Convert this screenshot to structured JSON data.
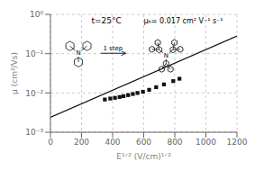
{
  "chart_data": {
    "type": "scatter",
    "x_label": "E¹ᐟ² (V/cm)¹ᐟ²",
    "y_label": "μ (cm²/Vs)",
    "log": "y",
    "grid": true,
    "xlim": [
      0,
      1200
    ],
    "xticks": [
      0,
      200,
      400,
      600,
      800,
      1000,
      1200
    ],
    "ylim": [
      0.001,
      1
    ],
    "yticks": [
      {
        "value": 0.001,
        "label": "10⁻³"
      },
      {
        "value": 0.01,
        "label": "10⁻²"
      },
      {
        "value": 0.1,
        "label": "10⁻¹"
      },
      {
        "value": 1,
        "label": "10⁰"
      }
    ],
    "series": [
      {
        "type": "line",
        "color": "#111111",
        "x": [
          0,
          1200
        ],
        "values": [
          0.0023988329190194903,
          0.28183829312644537
        ]
      },
      {
        "type": "scatter",
        "marker": "square",
        "color": "#111111",
        "x": [
          350,
          385,
          415,
          445,
          470,
          500,
          530,
          560,
          595,
          635,
          680,
          730,
          790,
          830
        ],
        "values": [
          0.0068,
          0.0072,
          0.0075,
          0.0079,
          0.0083,
          0.0088,
          0.0094,
          0.01,
          0.0107,
          0.012,
          0.014,
          0.0165,
          0.02,
          0.023
        ]
      }
    ],
    "annotations": [
      "t=25°C",
      "μₕ= 0.017 cm² V⁻¹ s⁻¹",
      "1 step",
      "N",
      "N"
    ]
  }
}
